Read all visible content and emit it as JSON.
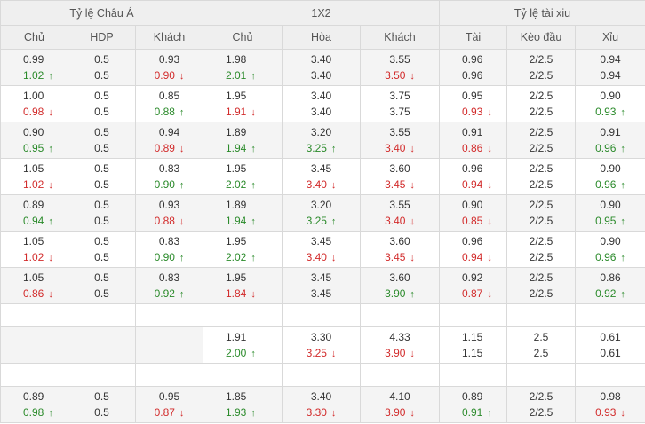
{
  "header": {
    "groups": [
      "Tỷ lệ Châu Á",
      "1X2",
      "Tỷ lệ tài xiu"
    ],
    "columns": [
      "Chủ",
      "HDP",
      "Khách",
      "Chủ",
      "Hòa",
      "Khách",
      "Tài",
      "Kèo đầu",
      "Xỉu"
    ]
  },
  "arrows": {
    "up": "↑",
    "down": "↓"
  },
  "colors": {
    "up": "#2a8a2a",
    "down": "#d22b2b",
    "alt_row": "#f4f4f4",
    "header_bg": "#efefef",
    "border": "#d9d9d9"
  },
  "rows": [
    {
      "type": "data",
      "cells": [
        [
          [
            "0.99",
            ""
          ],
          [
            "1.02",
            "up"
          ]
        ],
        [
          [
            "0.5",
            ""
          ],
          [
            "0.5",
            ""
          ]
        ],
        [
          [
            "0.93",
            ""
          ],
          [
            "0.90",
            "down"
          ]
        ],
        [
          [
            "1.98",
            ""
          ],
          [
            "2.01",
            "up"
          ]
        ],
        [
          [
            "3.40",
            ""
          ],
          [
            "3.40",
            ""
          ]
        ],
        [
          [
            "3.55",
            ""
          ],
          [
            "3.50",
            "down"
          ]
        ],
        [
          [
            "0.96",
            ""
          ],
          [
            "0.96",
            ""
          ]
        ],
        [
          [
            "2/2.5",
            ""
          ],
          [
            "2/2.5",
            ""
          ]
        ],
        [
          [
            "0.94",
            ""
          ],
          [
            "0.94",
            ""
          ]
        ]
      ]
    },
    {
      "type": "data",
      "cells": [
        [
          [
            "1.00",
            ""
          ],
          [
            "0.98",
            "down"
          ]
        ],
        [
          [
            "0.5",
            ""
          ],
          [
            "0.5",
            ""
          ]
        ],
        [
          [
            "0.85",
            ""
          ],
          [
            "0.88",
            "up"
          ]
        ],
        [
          [
            "1.95",
            ""
          ],
          [
            "1.91",
            "down"
          ]
        ],
        [
          [
            "3.40",
            ""
          ],
          [
            "3.40",
            ""
          ]
        ],
        [
          [
            "3.75",
            ""
          ],
          [
            "3.75",
            ""
          ]
        ],
        [
          [
            "0.95",
            ""
          ],
          [
            "0.93",
            "down"
          ]
        ],
        [
          [
            "2/2.5",
            ""
          ],
          [
            "2/2.5",
            ""
          ]
        ],
        [
          [
            "0.90",
            ""
          ],
          [
            "0.93",
            "up"
          ]
        ]
      ]
    },
    {
      "type": "data",
      "cells": [
        [
          [
            "0.90",
            ""
          ],
          [
            "0.95",
            "up"
          ]
        ],
        [
          [
            "0.5",
            ""
          ],
          [
            "0.5",
            ""
          ]
        ],
        [
          [
            "0.94",
            ""
          ],
          [
            "0.89",
            "down"
          ]
        ],
        [
          [
            "1.89",
            ""
          ],
          [
            "1.94",
            "up"
          ]
        ],
        [
          [
            "3.20",
            ""
          ],
          [
            "3.25",
            "up"
          ]
        ],
        [
          [
            "3.55",
            ""
          ],
          [
            "3.40",
            "down"
          ]
        ],
        [
          [
            "0.91",
            ""
          ],
          [
            "0.86",
            "down"
          ]
        ],
        [
          [
            "2/2.5",
            ""
          ],
          [
            "2/2.5",
            ""
          ]
        ],
        [
          [
            "0.91",
            ""
          ],
          [
            "0.96",
            "up"
          ]
        ]
      ]
    },
    {
      "type": "data",
      "cells": [
        [
          [
            "1.05",
            ""
          ],
          [
            "1.02",
            "down"
          ]
        ],
        [
          [
            "0.5",
            ""
          ],
          [
            "0.5",
            ""
          ]
        ],
        [
          [
            "0.83",
            ""
          ],
          [
            "0.90",
            "up"
          ]
        ],
        [
          [
            "1.95",
            ""
          ],
          [
            "2.02",
            "up"
          ]
        ],
        [
          [
            "3.45",
            ""
          ],
          [
            "3.40",
            "down"
          ]
        ],
        [
          [
            "3.60",
            ""
          ],
          [
            "3.45",
            "down"
          ]
        ],
        [
          [
            "0.96",
            ""
          ],
          [
            "0.94",
            "down"
          ]
        ],
        [
          [
            "2/2.5",
            ""
          ],
          [
            "2/2.5",
            ""
          ]
        ],
        [
          [
            "0.90",
            ""
          ],
          [
            "0.96",
            "up"
          ]
        ]
      ]
    },
    {
      "type": "data",
      "cells": [
        [
          [
            "0.89",
            ""
          ],
          [
            "0.94",
            "up"
          ]
        ],
        [
          [
            "0.5",
            ""
          ],
          [
            "0.5",
            ""
          ]
        ],
        [
          [
            "0.93",
            ""
          ],
          [
            "0.88",
            "down"
          ]
        ],
        [
          [
            "1.89",
            ""
          ],
          [
            "1.94",
            "up"
          ]
        ],
        [
          [
            "3.20",
            ""
          ],
          [
            "3.25",
            "up"
          ]
        ],
        [
          [
            "3.55",
            ""
          ],
          [
            "3.40",
            "down"
          ]
        ],
        [
          [
            "0.90",
            ""
          ],
          [
            "0.85",
            "down"
          ]
        ],
        [
          [
            "2/2.5",
            ""
          ],
          [
            "2/2.5",
            ""
          ]
        ],
        [
          [
            "0.90",
            ""
          ],
          [
            "0.95",
            "up"
          ]
        ]
      ]
    },
    {
      "type": "data",
      "cells": [
        [
          [
            "1.05",
            ""
          ],
          [
            "1.02",
            "down"
          ]
        ],
        [
          [
            "0.5",
            ""
          ],
          [
            "0.5",
            ""
          ]
        ],
        [
          [
            "0.83",
            ""
          ],
          [
            "0.90",
            "up"
          ]
        ],
        [
          [
            "1.95",
            ""
          ],
          [
            "2.02",
            "up"
          ]
        ],
        [
          [
            "3.45",
            ""
          ],
          [
            "3.40",
            "down"
          ]
        ],
        [
          [
            "3.60",
            ""
          ],
          [
            "3.45",
            "down"
          ]
        ],
        [
          [
            "0.96",
            ""
          ],
          [
            "0.94",
            "down"
          ]
        ],
        [
          [
            "2/2.5",
            ""
          ],
          [
            "2/2.5",
            ""
          ]
        ],
        [
          [
            "0.90",
            ""
          ],
          [
            "0.96",
            "up"
          ]
        ]
      ]
    },
    {
      "type": "data",
      "cells": [
        [
          [
            "1.05",
            ""
          ],
          [
            "0.86",
            "down"
          ]
        ],
        [
          [
            "0.5",
            ""
          ],
          [
            "0.5",
            ""
          ]
        ],
        [
          [
            "0.83",
            ""
          ],
          [
            "0.92",
            "up"
          ]
        ],
        [
          [
            "1.95",
            ""
          ],
          [
            "1.84",
            "down"
          ]
        ],
        [
          [
            "3.45",
            ""
          ],
          [
            "3.45",
            ""
          ]
        ],
        [
          [
            "3.60",
            ""
          ],
          [
            "3.90",
            "up"
          ]
        ],
        [
          [
            "0.92",
            ""
          ],
          [
            "0.87",
            "down"
          ]
        ],
        [
          [
            "2/2.5",
            ""
          ],
          [
            "2/2.5",
            ""
          ]
        ],
        [
          [
            "0.86",
            ""
          ],
          [
            "0.92",
            "up"
          ]
        ]
      ]
    },
    {
      "type": "empty"
    },
    {
      "type": "data",
      "cells": [
        null,
        null,
        null,
        [
          [
            "1.91",
            ""
          ],
          [
            "2.00",
            "up"
          ]
        ],
        [
          [
            "3.30",
            ""
          ],
          [
            "3.25",
            "down"
          ]
        ],
        [
          [
            "4.33",
            ""
          ],
          [
            "3.90",
            "down"
          ]
        ],
        [
          [
            "1.15",
            ""
          ],
          [
            "1.15",
            ""
          ]
        ],
        [
          [
            "2.5",
            ""
          ],
          [
            "2.5",
            ""
          ]
        ],
        [
          [
            "0.61",
            ""
          ],
          [
            "0.61",
            ""
          ]
        ]
      ]
    },
    {
      "type": "empty"
    },
    {
      "type": "data",
      "cells": [
        [
          [
            "0.89",
            ""
          ],
          [
            "0.98",
            "up"
          ]
        ],
        [
          [
            "0.5",
            ""
          ],
          [
            "0.5",
            ""
          ]
        ],
        [
          [
            "0.95",
            ""
          ],
          [
            "0.87",
            "down"
          ]
        ],
        [
          [
            "1.85",
            ""
          ],
          [
            "1.93",
            "up"
          ]
        ],
        [
          [
            "3.40",
            ""
          ],
          [
            "3.30",
            "down"
          ]
        ],
        [
          [
            "4.10",
            ""
          ],
          [
            "3.90",
            "down"
          ]
        ],
        [
          [
            "0.89",
            ""
          ],
          [
            "0.91",
            "up"
          ]
        ],
        [
          [
            "2/2.5",
            ""
          ],
          [
            "2/2.5",
            ""
          ]
        ],
        [
          [
            "0.98",
            ""
          ],
          [
            "0.93",
            "down"
          ]
        ]
      ]
    }
  ]
}
